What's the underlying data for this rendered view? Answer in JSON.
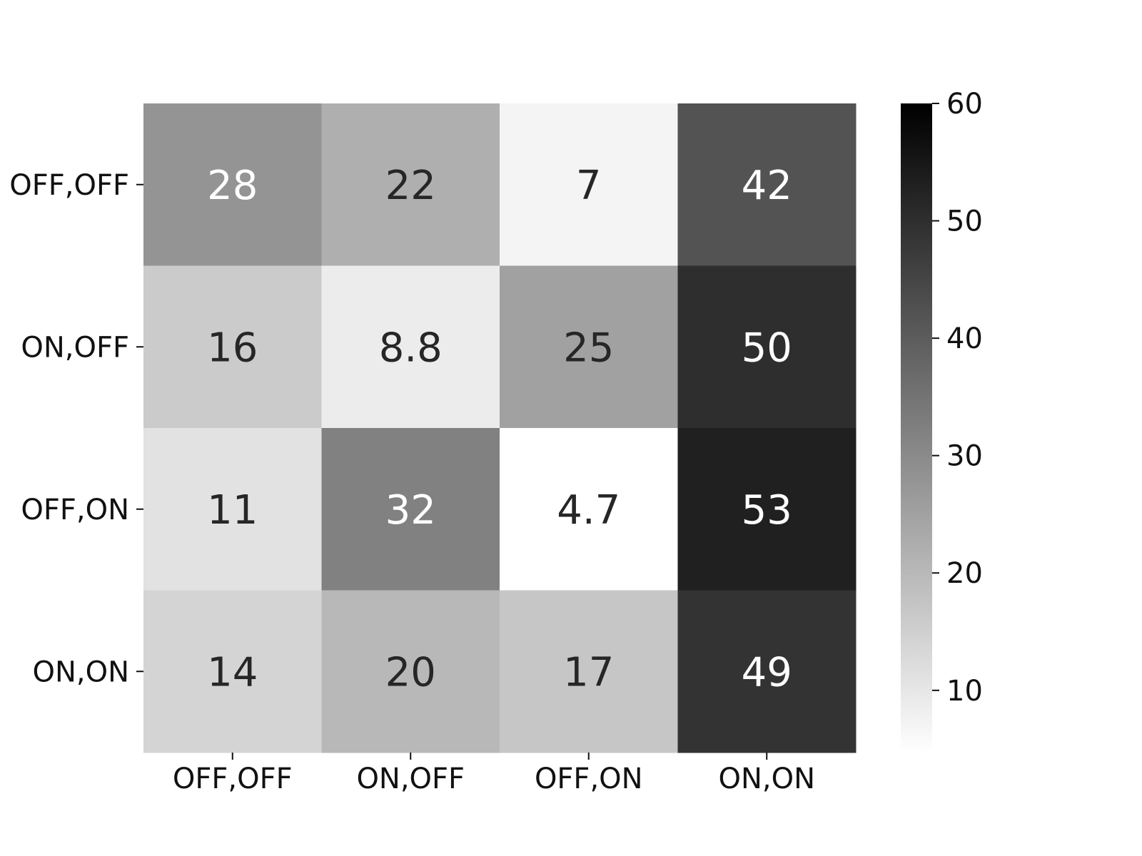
{
  "chart_data": {
    "type": "heatmap",
    "title": "",
    "xlabel": "",
    "ylabel": "",
    "x_categories": [
      "OFF,OFF",
      "ON,OFF",
      "OFF,ON",
      "ON,ON"
    ],
    "y_categories": [
      "OFF,OFF",
      "ON,OFF",
      "OFF,ON",
      "ON,ON"
    ],
    "values": [
      [
        "28",
        "22",
        "7",
        "42"
      ],
      [
        "16",
        "8.8",
        "25",
        "50"
      ],
      [
        "11",
        "32",
        "4.7",
        "53"
      ],
      [
        "14",
        "20",
        "17",
        "49"
      ]
    ],
    "colormap": "grayscale (white = low, black = high)",
    "colorbar": {
      "min": 4.7,
      "max": 60,
      "ticks": [
        "10",
        "20",
        "30",
        "40",
        "50",
        "60"
      ]
    },
    "grid": false
  }
}
